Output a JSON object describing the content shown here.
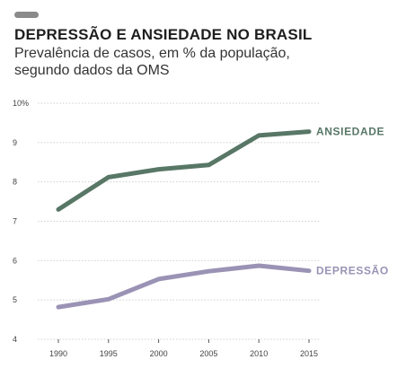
{
  "header": {
    "title": "DEPRESSÃO E ANSIEDADE NO BRASIL",
    "subtitle_line1": "Prevalência de casos, em % da população,",
    "subtitle_line2": "segundo dados da OMS"
  },
  "colors": {
    "pill": "#8a8a8a",
    "grid": "#cfcfcf",
    "ansiedade": "#587766",
    "depressao": "#9a93b5"
  },
  "chart_data": {
    "type": "line",
    "title": "DEPRESSÃO E ANSIEDADE NO BRASIL",
    "x": [
      1990,
      1995,
      2000,
      2005,
      2010,
      2015
    ],
    "x_tick_labels": [
      "1990",
      "1995",
      "2000",
      "2005",
      "2010",
      "2015"
    ],
    "y_ticks": [
      4,
      5,
      6,
      7,
      8,
      9,
      10
    ],
    "y_tick_labels": [
      "4",
      "5",
      "6",
      "7",
      "8",
      "9",
      "10%"
    ],
    "ylim": [
      4,
      10
    ],
    "xlim": [
      1990,
      2015
    ],
    "grid": true,
    "series": [
      {
        "name": "ANSIEDADE",
        "color": "#587766",
        "values": [
          7.3,
          8.12,
          8.32,
          8.43,
          9.18,
          9.28
        ]
      },
      {
        "name": "DEPRESSÃO",
        "color": "#9a93b5",
        "values": [
          4.82,
          5.02,
          5.53,
          5.73,
          5.87,
          5.74
        ]
      }
    ]
  }
}
